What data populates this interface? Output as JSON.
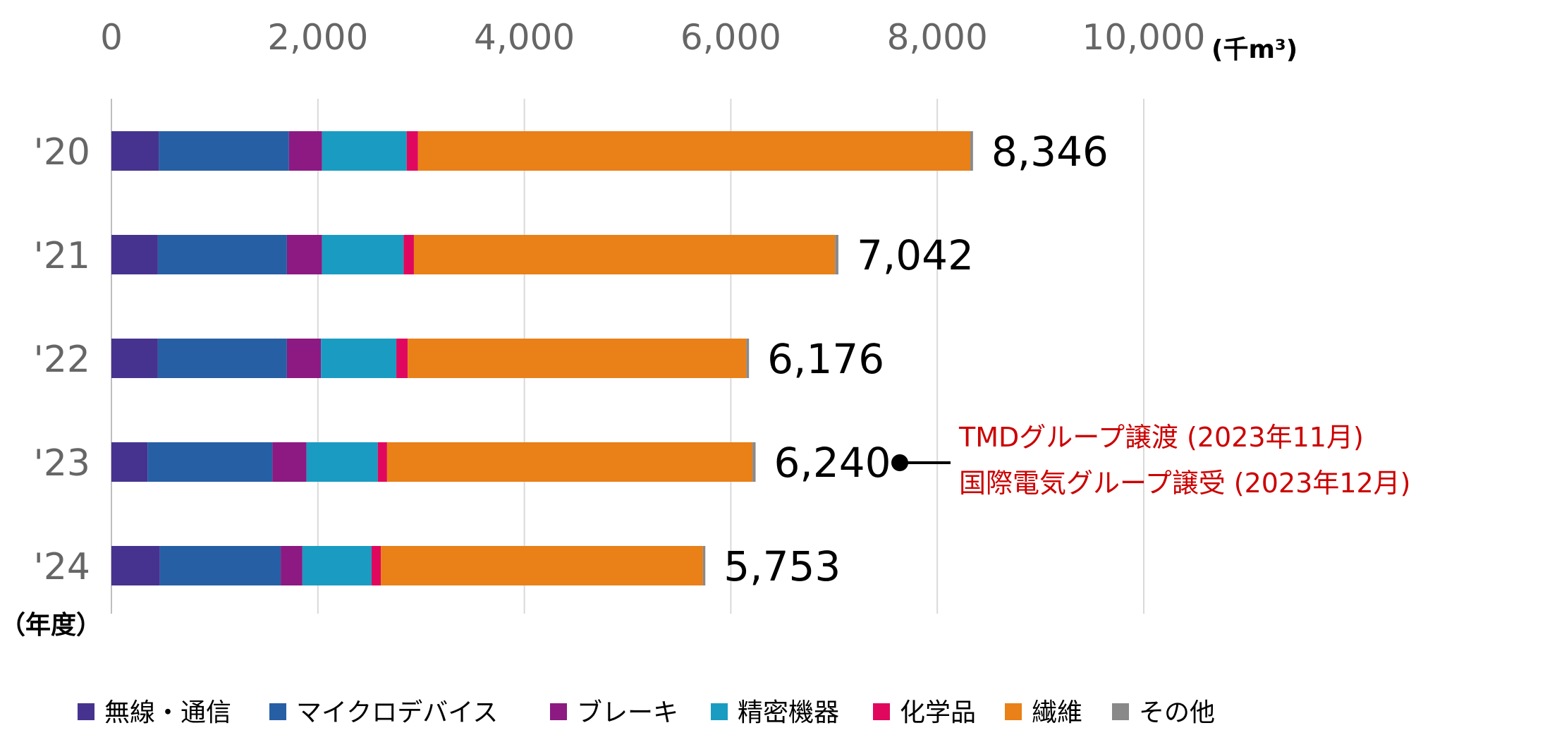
{
  "chart_data": {
    "type": "bar",
    "orientation": "horizontal",
    "stacked": true,
    "x_unit_label": "(千m³)",
    "y_unit_label": "（年度）",
    "xlim": [
      0,
      10000
    ],
    "x_ticks": [
      "0",
      "2,000",
      "4,000",
      "6,000",
      "8,000",
      "10,000"
    ],
    "x_tick_values": [
      0,
      2000,
      4000,
      6000,
      8000,
      10000
    ],
    "grid": true,
    "legend_position": "bottom",
    "categories": [
      "'20",
      "'21",
      "'22",
      "'23",
      "'24"
    ],
    "series": [
      {
        "name": "無線・通信",
        "color": "#46338f",
        "values": [
          460,
          450,
          450,
          350,
          470
        ]
      },
      {
        "name": "マイクロデバイス",
        "color": "#275fa5",
        "values": [
          1260,
          1250,
          1250,
          1210,
          1170
        ]
      },
      {
        "name": "ブレーキ",
        "color": "#8c1a82",
        "values": [
          320,
          340,
          330,
          330,
          210
        ]
      },
      {
        "name": "精密機器",
        "color": "#1a9cc2",
        "values": [
          820,
          790,
          730,
          690,
          670
        ]
      },
      {
        "name": "化学品",
        "color": "#e0085e",
        "values": [
          110,
          100,
          110,
          90,
          90
        ]
      },
      {
        "name": "繊維",
        "color": "#e98018",
        "values": [
          5350,
          4080,
          3280,
          3540,
          3120
        ]
      },
      {
        "name": "その他",
        "color": "#898989",
        "values": [
          26,
          32,
          26,
          30,
          23
        ]
      }
    ],
    "totals": [
      8346,
      7042,
      6176,
      6240,
      5753
    ],
    "total_labels": [
      "8,346",
      "7,042",
      "6,176",
      "6,240",
      "5,753"
    ],
    "annotation": {
      "category": "'23",
      "lines": [
        "TMDグループ譲渡 (2023年11月)",
        "国際電気グループ譲受 (2023年12月)"
      ]
    }
  }
}
